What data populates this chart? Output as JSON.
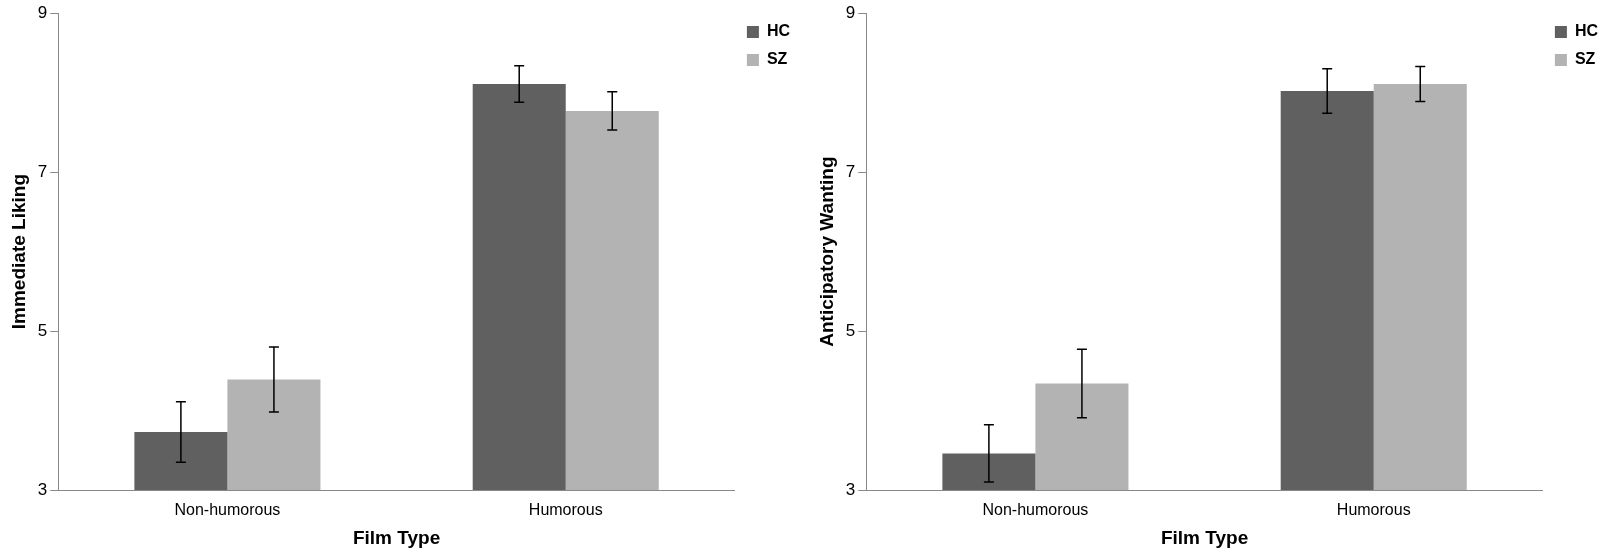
{
  "chart_data": [
    {
      "type": "bar",
      "xlabel": "Film Type",
      "ylabel": "Immediate Liking",
      "categories": [
        "Non-humorous",
        "Humorous"
      ],
      "ylim": [
        3,
        9
      ],
      "yticks": [
        3,
        5,
        7,
        9
      ],
      "grid": false,
      "legend": "top right",
      "series": [
        {
          "name": "HC",
          "color": "#606060",
          "values": [
            3.73,
            8.11
          ],
          "errors": [
            0.38,
            0.23
          ]
        },
        {
          "name": "SZ",
          "color": "#b3b3b3",
          "values": [
            4.39,
            7.77
          ],
          "errors": [
            0.41,
            0.24
          ]
        }
      ]
    },
    {
      "type": "bar",
      "xlabel": "Film Type",
      "ylabel": "Anticipatory Wanting",
      "categories": [
        "Non-humorous",
        "Humorous"
      ],
      "ylim": [
        3,
        9
      ],
      "yticks": [
        3,
        5,
        7,
        9
      ],
      "grid": false,
      "legend": "top right",
      "series": [
        {
          "name": "HC",
          "color": "#606060",
          "values": [
            3.46,
            8.02
          ],
          "errors": [
            0.36,
            0.28
          ]
        },
        {
          "name": "SZ",
          "color": "#b3b3b3",
          "values": [
            4.34,
            8.11
          ],
          "errors": [
            0.43,
            0.22
          ]
        }
      ]
    }
  ]
}
